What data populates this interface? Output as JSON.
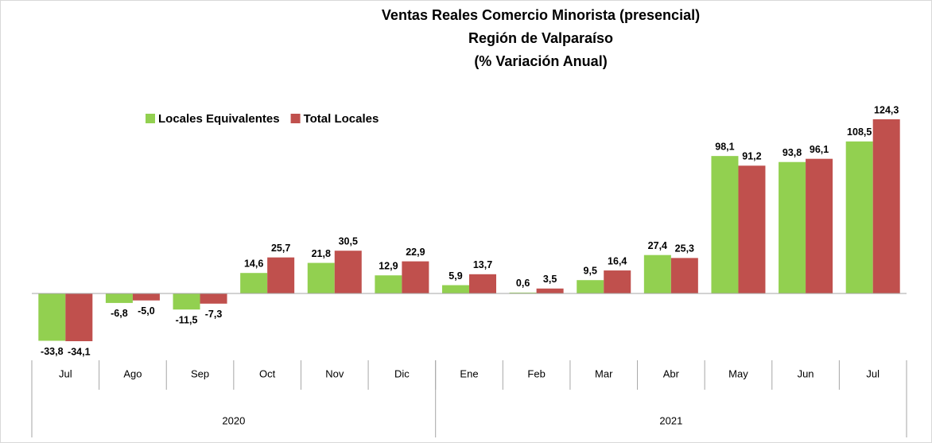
{
  "chart_data": {
    "type": "bar",
    "title": [
      "Ventas Reales Comercio Minorista (presencial)",
      "Región de Valparaíso",
      "(% Variación Anual)"
    ],
    "categories": [
      "Jul",
      "Ago",
      "Sep",
      "Oct",
      "Nov",
      "Dic",
      "Ene",
      "Feb",
      "Mar",
      "Abr",
      "May",
      "Jun",
      "Jul"
    ],
    "groups": [
      {
        "label": "2020",
        "count": 6
      },
      {
        "label": "2021",
        "count": 7
      }
    ],
    "series": [
      {
        "name": "Locales Equivalentes",
        "color": "#92d050",
        "values": [
          -33.8,
          -6.8,
          -11.5,
          14.6,
          21.8,
          12.9,
          5.9,
          0.6,
          9.5,
          27.4,
          98.1,
          93.8,
          108.5
        ],
        "value_labels": [
          "-33,8",
          "-6,8",
          "-11,5",
          "14,6",
          "21,8",
          "12,9",
          "5,9",
          "0,6",
          "9,5",
          "27,4",
          "98,1",
          "93,8",
          "108,5"
        ]
      },
      {
        "name": "Total Locales",
        "color": "#c0504d",
        "values": [
          -34.1,
          -5.0,
          -7.3,
          25.7,
          30.5,
          22.9,
          13.7,
          3.5,
          16.4,
          25.3,
          91.2,
          96.1,
          124.3
        ],
        "value_labels": [
          "-34,1",
          "-5,0",
          "-7,3",
          "25,7",
          "30,5",
          "22,9",
          "13,7",
          "3,5",
          "16,4",
          "25,3",
          "91,2",
          "96,1",
          "124,3"
        ]
      }
    ],
    "legend": "top-left"
  }
}
